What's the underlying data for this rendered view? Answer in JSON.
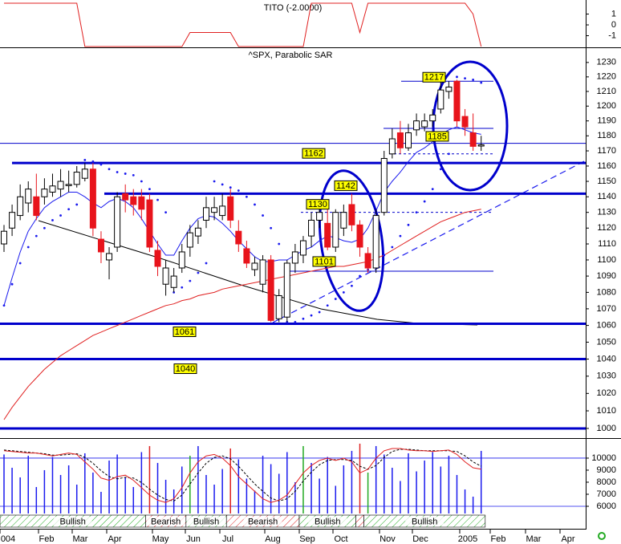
{
  "chart_data": [
    {
      "type": "line",
      "title": "TITO (-2.0000)",
      "color": "#e02020",
      "values": [
        2,
        2,
        2,
        2,
        2,
        2,
        2,
        2,
        2,
        2,
        -2,
        -2,
        -2,
        -2,
        -2,
        -2,
        -2,
        -2,
        -2,
        -2,
        -2,
        -2,
        -2,
        -0.7,
        -0.7,
        -0.7,
        -0.7,
        -0.7,
        -0.7,
        -2,
        -2,
        -2,
        -2,
        -2,
        -2,
        -2,
        -2,
        -2,
        2,
        2,
        2,
        2,
        2,
        2,
        -0.7,
        2,
        2,
        2,
        2,
        2,
        2,
        2,
        2,
        2,
        2,
        2,
        2,
        2,
        1,
        -2
      ],
      "ylim": [
        -2,
        2.3
      ],
      "yticks": [
        1,
        0,
        -1
      ]
    },
    {
      "type": "candlestick",
      "title": "^SPX, Parabolic SAR",
      "up_color": "#ffffff",
      "down_color": "#e8141c",
      "log_scale": true,
      "open": [
        1110,
        1120,
        1128,
        1136,
        1140,
        1140,
        1143,
        1145,
        1148,
        1148,
        1152,
        1158,
        1113,
        1100,
        1108,
        1142,
        1140,
        1140,
        1138,
        1106,
        1085,
        1083,
        1095,
        1108,
        1115,
        1125,
        1130,
        1128,
        1140,
        1118,
        1107,
        1094,
        1085,
        1100,
        1064,
        1065,
        1098,
        1103,
        1115,
        1125,
        1123,
        1108,
        1120,
        1135,
        1122,
        1104,
        1095,
        1130,
        1168,
        1182,
        1172,
        1184,
        1186,
        1190,
        1198,
        1210,
        1217,
        1193,
        1182,
        1174
      ],
      "high": [
        1122,
        1135,
        1148,
        1150,
        1155,
        1152,
        1155,
        1158,
        1157,
        1160,
        1162,
        1162,
        1118,
        1108,
        1143,
        1148,
        1145,
        1145,
        1142,
        1112,
        1100,
        1095,
        1110,
        1122,
        1125,
        1140,
        1140,
        1142,
        1145,
        1125,
        1112,
        1102,
        1103,
        1103,
        1082,
        1100,
        1110,
        1115,
        1130,
        1135,
        1133,
        1132,
        1135,
        1142,
        1125,
        1108,
        1132,
        1170,
        1185,
        1190,
        1188,
        1195,
        1195,
        1198,
        1218,
        1217,
        1218,
        1198,
        1195,
        1180
      ],
      "low": [
        1105,
        1115,
        1125,
        1130,
        1125,
        1135,
        1140,
        1140,
        1143,
        1146,
        1150,
        1115,
        1098,
        1088,
        1105,
        1130,
        1128,
        1125,
        1105,
        1090,
        1078,
        1080,
        1092,
        1102,
        1110,
        1120,
        1125,
        1125,
        1120,
        1105,
        1095,
        1090,
        1080,
        1062,
        1062,
        1062,
        1092,
        1098,
        1108,
        1120,
        1106,
        1105,
        1115,
        1118,
        1102,
        1092,
        1092,
        1128,
        1165,
        1168,
        1170,
        1180,
        1183,
        1186,
        1195,
        1205,
        1186,
        1180,
        1170,
        1170
      ],
      "close": [
        1118,
        1130,
        1140,
        1145,
        1128,
        1145,
        1147,
        1150,
        1148,
        1156,
        1158,
        1120,
        1105,
        1104,
        1140,
        1138,
        1135,
        1132,
        1108,
        1096,
        1095,
        1090,
        1105,
        1117,
        1120,
        1133,
        1133,
        1134,
        1125,
        1110,
        1098,
        1098,
        1100,
        1063,
        1078,
        1098,
        1105,
        1112,
        1125,
        1130,
        1108,
        1130,
        1130,
        1122,
        1108,
        1095,
        1128,
        1165,
        1178,
        1172,
        1182,
        1190,
        1190,
        1194,
        1211,
        1213,
        1190,
        1186,
        1173,
        1174
      ],
      "ma_fast": {
        "color": "#1a1aee",
        "values": [
          1072,
          1089,
          1105,
          1118,
          1126,
          1133,
          1137,
          1140,
          1143,
          1143,
          1140,
          1136,
          1133,
          1137,
          1139,
          1137,
          1133,
          1126,
          1118,
          1110,
          1103,
          1103,
          1112,
          1120,
          1126,
          1128,
          1127,
          1123,
          1118,
          1112,
          1107,
          1102,
          1099,
          1099,
          1100,
          1100,
          1103,
          1106,
          1108,
          1112,
          1115,
          1114,
          1112,
          1111,
          1113,
          1120,
          1131,
          1143,
          1150,
          1156,
          1163,
          1169,
          1172,
          1176,
          1181,
          1184,
          1186,
          1184,
          1182,
          1181
        ]
      },
      "ma_slow": {
        "color": "#e02020",
        "values": [
          1005,
          1012,
          1018,
          1024,
          1029,
          1034,
          1038,
          1042,
          1045,
          1048,
          1051,
          1054,
          1056,
          1058,
          1060,
          1062,
          1064,
          1066,
          1068,
          1070,
          1072,
          1073,
          1075,
          1076,
          1078,
          1079,
          1080,
          1082,
          1083,
          1084,
          1085,
          1086,
          1087,
          1088,
          1089,
          1090,
          1091,
          1092,
          1093,
          1094,
          1095,
          1096,
          1096,
          1097,
          1098,
          1099,
          1101,
          1103,
          1106,
          1109,
          1112,
          1115,
          1118,
          1121,
          1124,
          1126,
          1128,
          1130,
          1131,
          1132
        ]
      },
      "sar": {
        "color": "#1a1aee",
        "values": [
          1072,
          1085,
          1098,
          1108,
          1115,
          1120,
          1125,
          1128,
          1132,
          1135,
          1164,
          1163,
          1161,
          1158,
          1156,
          1155,
          1154,
          1150,
          1145,
          1138,
          1130,
          1080,
          1083,
          1087,
          1092,
          1098,
          1150,
          1148,
          1146,
          1144,
          1140,
          1135,
          1128,
          1120,
          1110,
          1062,
          1062,
          1064,
          1066,
          1068,
          1072,
          1076,
          1080,
          1084,
          1090,
          1094,
          1098,
          1103,
          1108,
          1115,
          1122,
          1130,
          1137,
          1145,
          1158,
          1168,
          1220,
          1219,
          1218,
          1216
        ]
      },
      "ylim": [
        995,
        1240
      ],
      "yticks": [
        1000,
        1010,
        1020,
        1030,
        1040,
        1050,
        1060,
        1070,
        1080,
        1090,
        1100,
        1110,
        1120,
        1130,
        1140,
        1150,
        1160,
        1170,
        1180,
        1190,
        1200,
        1210,
        1220,
        1230
      ],
      "level_color": "#0000cc",
      "levels": [
        1162,
        1142,
        1061,
        1040,
        1000
      ],
      "thin_levels": [
        1217,
        1185,
        1175,
        1093
      ],
      "dashed_levels": [
        1168,
        1130
      ],
      "price_labels": [
        1217,
        1185,
        1162,
        1142,
        1130,
        1101,
        1061,
        1040
      ]
    },
    {
      "type": "bar",
      "color": "#1a1aee",
      "values": [
        10300,
        9200,
        8400,
        10200,
        7600,
        9000,
        10100,
        8600,
        9400,
        7800,
        10400,
        8800,
        7200,
        9800,
        10300,
        8400,
        7600,
        10500,
        11000,
        9600,
        8200,
        7400,
        9300,
        10200,
        11000,
        8600,
        7800,
        9100,
        10800,
        9900,
        8300,
        7300,
        10200,
        9500,
        8700,
        10500,
        8000,
        11000,
        9600,
        8300,
        10100,
        7700,
        9400,
        10600,
        11200,
        8800,
        11000,
        10300,
        9200,
        8100,
        10400,
        8900,
        9800,
        10500,
        9300,
        10200,
        8600,
        7400,
        6800,
        10600
      ],
      "ylim": [
        5400,
        11530
      ],
      "yticks": [
        6000,
        7000,
        8000,
        9000,
        10000
      ],
      "stoch_k": {
        "color": "#e02020",
        "values": [
          85,
          84,
          83,
          82,
          82,
          80,
          78,
          80,
          82,
          80,
          70,
          60,
          48,
          45,
          50,
          52,
          45,
          35,
          25,
          18,
          15,
          20,
          35,
          55,
          70,
          78,
          80,
          75,
          65,
          50,
          40,
          30,
          20,
          15,
          18,
          25,
          40,
          55,
          65,
          72,
          75,
          72,
          75,
          70,
          55,
          60,
          75,
          85,
          88,
          88,
          86,
          85,
          85,
          84,
          85,
          86,
          80,
          70,
          62,
          60
        ]
      },
      "stoch_d": {
        "color": "#000000",
        "values": [
          86,
          85,
          84,
          83,
          82,
          81,
          79,
          79,
          80,
          81,
          76,
          68,
          58,
          50,
          47,
          49,
          48,
          42,
          33,
          25,
          19,
          17,
          25,
          40,
          55,
          68,
          76,
          78,
          74,
          64,
          52,
          40,
          30,
          21,
          17,
          20,
          30,
          44,
          56,
          66,
          72,
          73,
          73,
          72,
          64,
          60,
          65,
          76,
          84,
          87,
          87,
          86,
          85,
          85,
          85,
          85,
          84,
          78,
          70,
          64
        ]
      },
      "y2lim": [
        0,
        100
      ],
      "trend": [
        {
          "label": "Bullish",
          "from": 0,
          "to": 18,
          "color": "#22aa22"
        },
        {
          "label": "Bearish",
          "from": 18,
          "to": 23,
          "color": "#dd2222"
        },
        {
          "label": "Bullish",
          "from": 23,
          "to": 28,
          "color": "#22aa22"
        },
        {
          "label": "Bearish",
          "from": 28,
          "to": 37,
          "color": "#dd2222"
        },
        {
          "label": "Bullish",
          "from": 37,
          "to": 44,
          "color": "#22aa22"
        },
        {
          "label": null,
          "from": 44,
          "to": 45,
          "color": "#dd2222"
        },
        {
          "label": "Bullish",
          "from": 45,
          "to": 60,
          "color": "#22aa22"
        }
      ],
      "month_labels": [
        "004",
        "Feb",
        "Mar",
        "Apr",
        "May",
        "Jun",
        "Jul",
        "Aug",
        "Sep",
        "Oct",
        "Nov",
        "Dec",
        "2005",
        "Feb",
        "Mar",
        "Apr"
      ]
    }
  ]
}
